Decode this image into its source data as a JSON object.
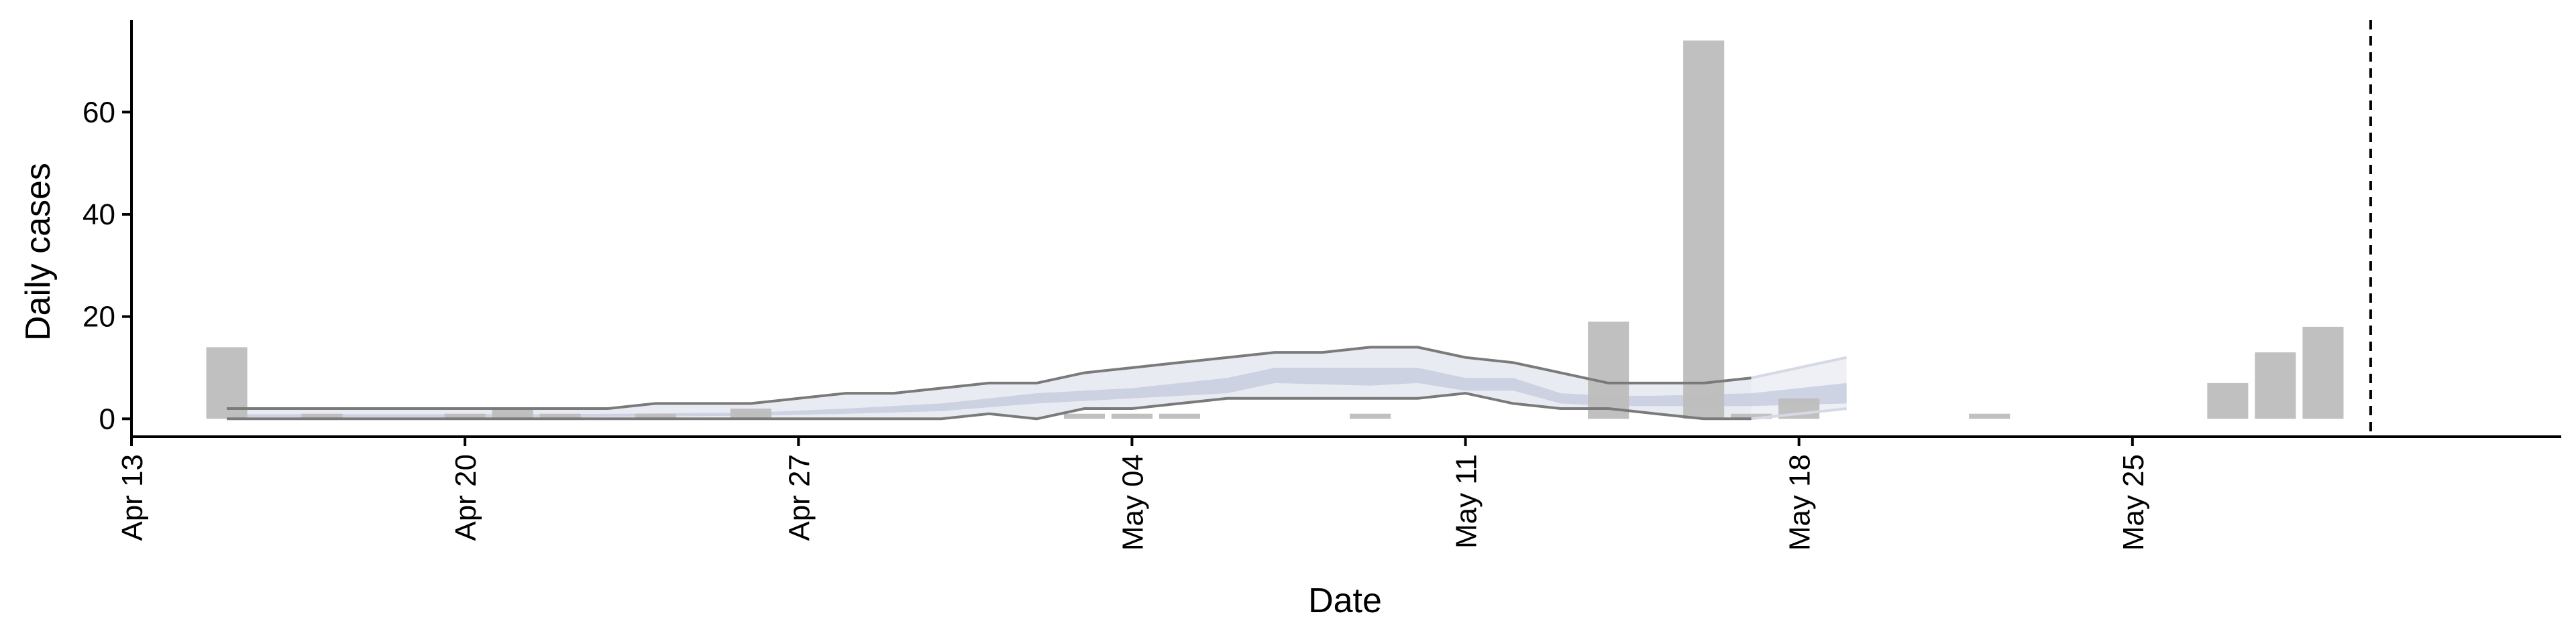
{
  "chart_data": {
    "type": "bar",
    "xlabel": "Date",
    "ylabel": "Daily cases",
    "x_ticks": [
      {
        "date": "2020-04-13",
        "label": "Apr 13"
      },
      {
        "date": "2020-04-20",
        "label": "Apr 20"
      },
      {
        "date": "2020-04-27",
        "label": "Apr 27"
      },
      {
        "date": "2020-05-04",
        "label": "May 04"
      },
      {
        "date": "2020-05-11",
        "label": "May 11"
      },
      {
        "date": "2020-05-18",
        "label": "May 18"
      },
      {
        "date": "2020-05-25",
        "label": "May 25"
      }
    ],
    "y_ticks": [
      0,
      20,
      40,
      60
    ],
    "xlim": [
      "2020-04-13",
      "2020-06-03"
    ],
    "ylim": [
      -3.5,
      78
    ],
    "grid": false,
    "bars": [
      {
        "date": "2020-04-15",
        "value": 14
      },
      {
        "date": "2020-04-17",
        "value": 1
      },
      {
        "date": "2020-04-20",
        "value": 1
      },
      {
        "date": "2020-04-21",
        "value": 2
      },
      {
        "date": "2020-04-22",
        "value": 1
      },
      {
        "date": "2020-04-24",
        "value": 1
      },
      {
        "date": "2020-04-26",
        "value": 2
      },
      {
        "date": "2020-05-03",
        "value": 1
      },
      {
        "date": "2020-05-04",
        "value": 1
      },
      {
        "date": "2020-05-05",
        "value": 1
      },
      {
        "date": "2020-05-09",
        "value": 1
      },
      {
        "date": "2020-05-14",
        "value": 19
      },
      {
        "date": "2020-05-16",
        "value": 74
      },
      {
        "date": "2020-05-17",
        "value": 1
      },
      {
        "date": "2020-05-18",
        "value": 4
      },
      {
        "date": "2020-05-22",
        "value": 1
      },
      {
        "date": "2020-05-27",
        "value": 7
      },
      {
        "date": "2020-05-28",
        "value": 13
      },
      {
        "date": "2020-05-29",
        "value": 18
      }
    ],
    "estimate_upper": [
      {
        "date": "2020-04-15",
        "value": 2
      },
      {
        "date": "2020-04-23",
        "value": 2
      },
      {
        "date": "2020-04-24",
        "value": 3
      },
      {
        "date": "2020-04-26",
        "value": 3
      },
      {
        "date": "2020-04-27",
        "value": 4
      },
      {
        "date": "2020-04-28",
        "value": 5
      },
      {
        "date": "2020-04-29",
        "value": 5
      },
      {
        "date": "2020-04-30",
        "value": 6
      },
      {
        "date": "2020-05-01",
        "value": 7
      },
      {
        "date": "2020-05-02",
        "value": 7
      },
      {
        "date": "2020-05-03",
        "value": 9
      },
      {
        "date": "2020-05-04",
        "value": 10
      },
      {
        "date": "2020-05-05",
        "value": 11
      },
      {
        "date": "2020-05-06",
        "value": 12
      },
      {
        "date": "2020-05-07",
        "value": 13
      },
      {
        "date": "2020-05-08",
        "value": 13
      },
      {
        "date": "2020-05-09",
        "value": 14
      },
      {
        "date": "2020-05-10",
        "value": 14
      },
      {
        "date": "2020-05-11",
        "value": 12
      },
      {
        "date": "2020-05-12",
        "value": 11
      },
      {
        "date": "2020-05-13",
        "value": 9
      },
      {
        "date": "2020-05-14",
        "value": 7
      },
      {
        "date": "2020-05-15",
        "value": 7
      },
      {
        "date": "2020-05-16",
        "value": 7
      },
      {
        "date": "2020-05-17",
        "value": 8
      }
    ],
    "estimate_lower": [
      {
        "date": "2020-04-15",
        "value": 0
      },
      {
        "date": "2020-04-30",
        "value": 0
      },
      {
        "date": "2020-05-01",
        "value": 1
      },
      {
        "date": "2020-05-02",
        "value": 0
      },
      {
        "date": "2020-05-03",
        "value": 2
      },
      {
        "date": "2020-05-04",
        "value": 2
      },
      {
        "date": "2020-05-05",
        "value": 3
      },
      {
        "date": "2020-05-06",
        "value": 4
      },
      {
        "date": "2020-05-07",
        "value": 4
      },
      {
        "date": "2020-05-08",
        "value": 4
      },
      {
        "date": "2020-05-09",
        "value": 4
      },
      {
        "date": "2020-05-10",
        "value": 4
      },
      {
        "date": "2020-05-11",
        "value": 5
      },
      {
        "date": "2020-05-12",
        "value": 3
      },
      {
        "date": "2020-05-13",
        "value": 2
      },
      {
        "date": "2020-05-14",
        "value": 2
      },
      {
        "date": "2020-05-15",
        "value": 1
      },
      {
        "date": "2020-05-16",
        "value": 0
      },
      {
        "date": "2020-05-17",
        "value": 0
      }
    ],
    "projection_upper": [
      {
        "date": "2020-05-17",
        "value": 8
      },
      {
        "date": "2020-05-18",
        "value": 10
      },
      {
        "date": "2020-05-19",
        "value": 12
      }
    ],
    "projection_lower": [
      {
        "date": "2020-05-17",
        "value": 0
      },
      {
        "date": "2020-05-18",
        "value": 1
      },
      {
        "date": "2020-05-19",
        "value": 2
      }
    ],
    "inner_band": [
      {
        "date": "2020-04-15",
        "lo": 0.3,
        "hi": 0.9
      },
      {
        "date": "2020-04-22",
        "lo": 0.3,
        "hi": 0.9
      },
      {
        "date": "2020-04-26",
        "lo": 0.6,
        "hi": 1.2
      },
      {
        "date": "2020-04-28",
        "lo": 1,
        "hi": 2
      },
      {
        "date": "2020-04-30",
        "lo": 1.5,
        "hi": 3
      },
      {
        "date": "2020-05-02",
        "lo": 3,
        "hi": 5
      },
      {
        "date": "2020-05-04",
        "lo": 4,
        "hi": 6
      },
      {
        "date": "2020-05-06",
        "lo": 5,
        "hi": 8
      },
      {
        "date": "2020-05-07",
        "lo": 7,
        "hi": 10
      },
      {
        "date": "2020-05-09",
        "lo": 6.5,
        "hi": 10
      },
      {
        "date": "2020-05-10",
        "lo": 7,
        "hi": 10
      },
      {
        "date": "2020-05-11",
        "lo": 5.5,
        "hi": 8
      },
      {
        "date": "2020-05-12",
        "lo": 5.5,
        "hi": 8
      },
      {
        "date": "2020-05-13",
        "lo": 3,
        "hi": 5
      },
      {
        "date": "2020-05-14",
        "lo": 2.5,
        "hi": 4.5
      },
      {
        "date": "2020-05-15",
        "lo": 2.5,
        "hi": 4.5
      },
      {
        "date": "2020-05-17",
        "lo": 2.5,
        "hi": 5
      },
      {
        "date": "2020-05-19",
        "lo": 3,
        "hi": 7
      }
    ],
    "reference_line": {
      "date": "2020-05-30",
      "style": "dashed"
    },
    "colors": {
      "bars": "#bdbdbd",
      "band_outer": "#e9ebf2",
      "band_inner": "#c9cfe0",
      "band_projection": "#eef0f5",
      "boundary_line": "#7a7a7a",
      "projection_line": "#d6d9e4",
      "axis": "#000000"
    }
  }
}
